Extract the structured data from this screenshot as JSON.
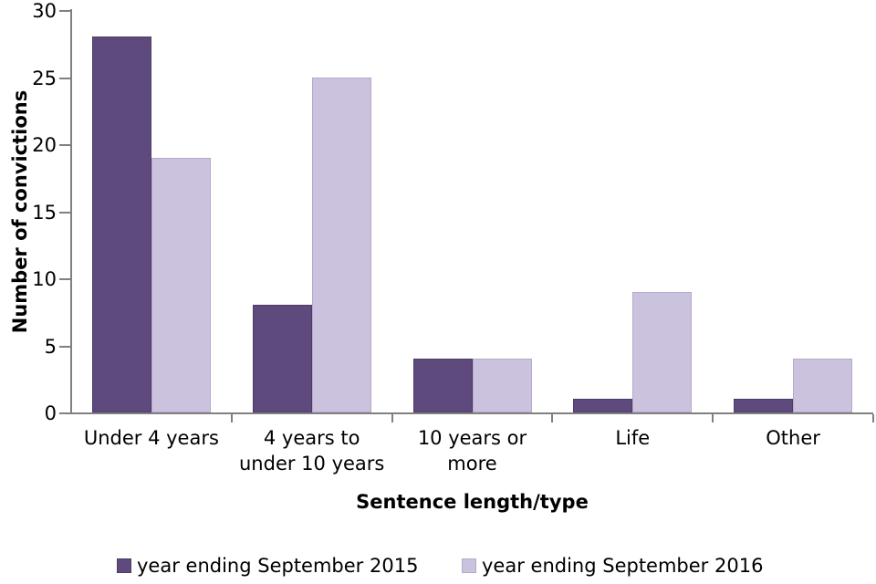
{
  "chart_data": {
    "type": "bar",
    "title": "",
    "xlabel": "Sentence length/type",
    "ylabel": "Number of convictions",
    "categories": [
      "Under 4 years",
      "4 years to under 10 years",
      "10 years or more",
      "Life",
      "Other"
    ],
    "series": [
      {
        "name": "year ending September 2015",
        "color": "#5E4A7D",
        "border_color": "#4D3C66",
        "values": [
          28,
          8,
          4,
          1,
          1
        ]
      },
      {
        "name": "year ending September 2016",
        "color": "#CBC3DD",
        "border_color": "#B7A8CD",
        "values": [
          19,
          25,
          4,
          9,
          4
        ]
      }
    ],
    "ylim": [
      0,
      30
    ],
    "yticks": [
      0,
      5,
      10,
      15,
      20,
      25,
      30
    ],
    "grid": false,
    "legend_position": "bottom",
    "axis_color": "#808080"
  }
}
